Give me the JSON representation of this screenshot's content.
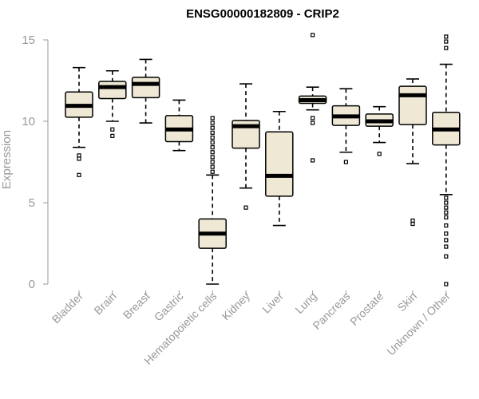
{
  "chart_data": {
    "type": "boxplot",
    "title": "ENSG00000182809 - CRIP2",
    "ylabel": "Expression",
    "xlabel": "",
    "ylim": [
      0,
      15
    ],
    "yticks": [
      0,
      5,
      10,
      15
    ],
    "box_color": "#EEE8D5",
    "categories": [
      "Bladder",
      "Brain",
      "Breast",
      "Gastric",
      "Hematopoietic cells",
      "Kidney",
      "Liver",
      "Lung",
      "Pancreas",
      "Prostate",
      "Skin",
      "Unknown / Other"
    ],
    "boxes": [
      {
        "category": "Bladder",
        "min": 8.4,
        "q1": 10.25,
        "median": 10.95,
        "q3": 11.8,
        "max": 13.3,
        "outliers": [
          7.7,
          7.9,
          6.7
        ]
      },
      {
        "category": "Brain",
        "min": 10.0,
        "q1": 11.4,
        "median": 12.1,
        "q3": 12.45,
        "max": 13.1,
        "outliers": [
          9.5,
          9.1
        ]
      },
      {
        "category": "Breast",
        "min": 9.9,
        "q1": 11.45,
        "median": 12.3,
        "q3": 12.7,
        "max": 13.8,
        "outliers": []
      },
      {
        "category": "Gastric",
        "min": 8.2,
        "q1": 8.75,
        "median": 9.5,
        "q3": 10.35,
        "max": 11.3,
        "outliers": []
      },
      {
        "category": "Hematopoietic cells",
        "min": 0.0,
        "q1": 2.2,
        "median": 3.1,
        "q3": 4.0,
        "max": 6.7,
        "outliers": [
          10.2,
          9.9,
          9.6,
          9.3,
          9.0,
          8.7,
          8.4,
          8.1,
          7.8,
          7.5,
          7.2,
          6.9
        ]
      },
      {
        "category": "Kidney",
        "min": 5.9,
        "q1": 8.35,
        "median": 9.7,
        "q3": 10.05,
        "max": 12.3,
        "outliers": [
          4.7
        ]
      },
      {
        "category": "Liver",
        "min": 3.6,
        "q1": 5.4,
        "median": 6.65,
        "q3": 9.35,
        "max": 10.6,
        "outliers": []
      },
      {
        "category": "Lung",
        "min": 10.7,
        "q1": 11.1,
        "median": 11.3,
        "q3": 11.55,
        "max": 12.1,
        "outliers": [
          15.3,
          10.2,
          9.9,
          7.6
        ]
      },
      {
        "category": "Pancreas",
        "min": 8.1,
        "q1": 9.75,
        "median": 10.3,
        "q3": 10.95,
        "max": 12.0,
        "outliers": [
          7.5
        ]
      },
      {
        "category": "Prostate",
        "min": 8.7,
        "q1": 9.7,
        "median": 10.0,
        "q3": 10.45,
        "max": 10.9,
        "outliers": [
          8.0
        ]
      },
      {
        "category": "Skin",
        "min": 7.4,
        "q1": 9.8,
        "median": 11.6,
        "q3": 12.15,
        "max": 12.6,
        "outliers": [
          3.9,
          3.7
        ]
      },
      {
        "category": "Unknown / Other",
        "min": 5.5,
        "q1": 8.55,
        "median": 9.5,
        "q3": 10.55,
        "max": 13.5,
        "outliers": [
          15.2,
          14.9,
          14.5,
          5.3,
          5.0,
          4.7,
          4.4,
          4.1,
          3.6,
          3.1,
          2.7,
          2.3,
          1.7,
          0.0
        ]
      }
    ]
  }
}
